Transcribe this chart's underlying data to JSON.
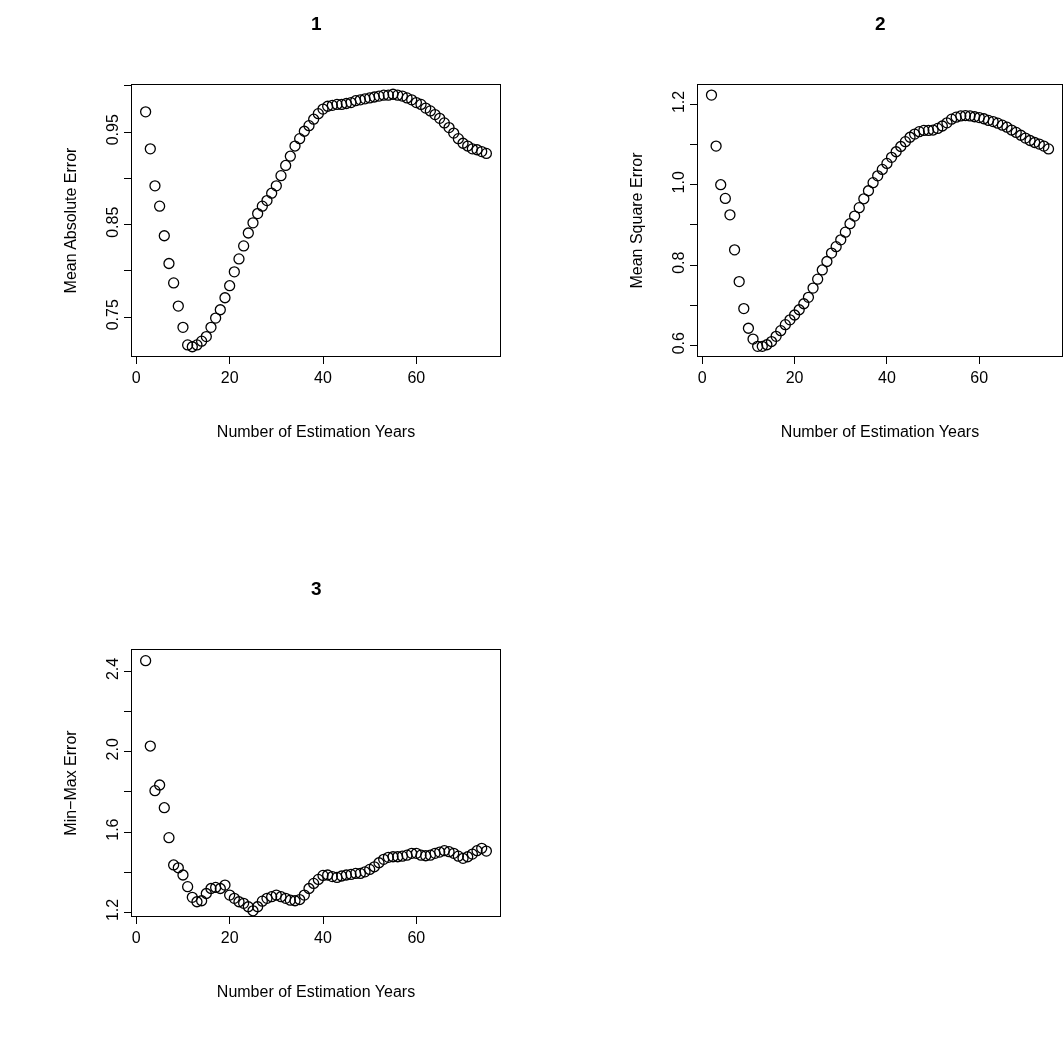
{
  "chart_data": [
    {
      "type": "scatter",
      "title": "1",
      "xlabel": "Number of Estimation Years",
      "ylabel": "Mean Absolute Error",
      "marker": "circle",
      "grid": false,
      "legend": false,
      "x": [
        2,
        3,
        4,
        5,
        6,
        7,
        8,
        9,
        10,
        11,
        12,
        13,
        14,
        15,
        16,
        17,
        18,
        19,
        20,
        21,
        22,
        23,
        24,
        25,
        26,
        27,
        28,
        29,
        30,
        31,
        32,
        33,
        34,
        35,
        36,
        37,
        38,
        39,
        40,
        41,
        42,
        43,
        44,
        45,
        46,
        47,
        48,
        49,
        50,
        51,
        52,
        53,
        54,
        55,
        56,
        57,
        58,
        59,
        60,
        61,
        62,
        63,
        64,
        65,
        66,
        67,
        68,
        69,
        70,
        71,
        72,
        73,
        74,
        75
      ],
      "series": [
        {
          "color": "#000000",
          "values": [
            0.972,
            0.932,
            0.892,
            0.87,
            0.838,
            0.808,
            0.787,
            0.762,
            0.739,
            0.72,
            0.718,
            0.72,
            0.724,
            0.729,
            0.739,
            0.749,
            0.758,
            0.771,
            0.784,
            0.799,
            0.813,
            0.827,
            0.841,
            0.852,
            0.862,
            0.87,
            0.876,
            0.884,
            0.892,
            0.903,
            0.914,
            0.924,
            0.935,
            0.943,
            0.951,
            0.957,
            0.964,
            0.97,
            0.975,
            0.978,
            0.979,
            0.98,
            0.98,
            0.981,
            0.982,
            0.984,
            0.985,
            0.986,
            0.987,
            0.988,
            0.989,
            0.99,
            0.99,
            0.991,
            0.99,
            0.989,
            0.987,
            0.985,
            0.982,
            0.98,
            0.976,
            0.973,
            0.969,
            0.965,
            0.96,
            0.955,
            0.949,
            0.943,
            0.938,
            0.935,
            0.932,
            0.931,
            0.929,
            0.927
          ]
        }
      ],
      "xlim": [
        -0.92,
        77.92
      ],
      "xticks": [
        0,
        20,
        40,
        60
      ],
      "ylim": [
        0.708,
        1.001
      ],
      "yticks": [
        0.75,
        {
          "value": 0.8,
          "label": null
        },
        0.85,
        {
          "value": 0.9,
          "label": null
        },
        0.95,
        {
          "value": 1,
          "label": null
        }
      ]
    },
    {
      "type": "scatter",
      "title": "2",
      "xlabel": "Number of Estimation Years",
      "ylabel": "Mean Square Error",
      "marker": "circle",
      "grid": false,
      "legend": false,
      "x": [
        2,
        3,
        4,
        5,
        6,
        7,
        8,
        9,
        10,
        11,
        12,
        13,
        14,
        15,
        16,
        17,
        18,
        19,
        20,
        21,
        22,
        23,
        24,
        25,
        26,
        27,
        28,
        29,
        30,
        31,
        32,
        33,
        34,
        35,
        36,
        37,
        38,
        39,
        40,
        41,
        42,
        43,
        44,
        45,
        46,
        47,
        48,
        49,
        50,
        51,
        52,
        53,
        54,
        55,
        56,
        57,
        58,
        59,
        60,
        61,
        62,
        63,
        64,
        65,
        66,
        67,
        68,
        69,
        70,
        71,
        72,
        73,
        74,
        75
      ],
      "series": [
        {
          "color": "#000000",
          "values": [
            1.223,
            1.096,
            1.0,
            0.966,
            0.925,
            0.838,
            0.759,
            0.692,
            0.643,
            0.616,
            0.598,
            0.598,
            0.602,
            0.61,
            0.623,
            0.637,
            0.652,
            0.664,
            0.676,
            0.689,
            0.704,
            0.72,
            0.743,
            0.765,
            0.788,
            0.809,
            0.83,
            0.846,
            0.863,
            0.882,
            0.903,
            0.922,
            0.943,
            0.965,
            0.985,
            1.005,
            1.022,
            1.038,
            1.053,
            1.068,
            1.082,
            1.095,
            1.107,
            1.118,
            1.126,
            1.132,
            1.135,
            1.135,
            1.136,
            1.14,
            1.146,
            1.154,
            1.163,
            1.168,
            1.171,
            1.172,
            1.171,
            1.169,
            1.167,
            1.164,
            1.16,
            1.157,
            1.153,
            1.148,
            1.143,
            1.136,
            1.13,
            1.123,
            1.116,
            1.11,
            1.105,
            1.101,
            1.096,
            1.089
          ]
        }
      ],
      "xlim": [
        -0.92,
        77.92
      ],
      "xticks": [
        0,
        20,
        40,
        60
      ],
      "ylim": [
        0.574,
        1.248
      ],
      "yticks": [
        0.6,
        {
          "value": 0.7,
          "label": null
        },
        0.8,
        {
          "value": 0.9,
          "label": null
        },
        {
          "value": 1,
          "label": "1.0"
        },
        {
          "value": 1.1,
          "label": null
        },
        1.2
      ]
    },
    {
      "type": "scatter",
      "title": "3",
      "xlabel": "Number of Estimation Years",
      "ylabel": "Min−Max Error",
      "marker": "circle",
      "grid": false,
      "legend": false,
      "x": [
        2,
        3,
        4,
        5,
        6,
        7,
        8,
        9,
        10,
        11,
        12,
        13,
        14,
        15,
        16,
        17,
        18,
        19,
        20,
        21,
        22,
        23,
        24,
        25,
        26,
        27,
        28,
        29,
        30,
        31,
        32,
        33,
        34,
        35,
        36,
        37,
        38,
        39,
        40,
        41,
        42,
        43,
        44,
        45,
        46,
        47,
        48,
        49,
        50,
        51,
        52,
        53,
        54,
        55,
        56,
        57,
        58,
        59,
        60,
        61,
        62,
        63,
        64,
        65,
        66,
        67,
        68,
        69,
        70,
        71,
        72,
        73,
        74,
        75
      ],
      "series": [
        {
          "color": "#000000",
          "values": [
            2.453,
            2.028,
            1.806,
            1.834,
            1.721,
            1.572,
            1.436,
            1.422,
            1.386,
            1.328,
            1.275,
            1.253,
            1.258,
            1.294,
            1.319,
            1.324,
            1.319,
            1.336,
            1.286,
            1.27,
            1.253,
            1.245,
            1.228,
            1.208,
            1.228,
            1.256,
            1.27,
            1.278,
            1.286,
            1.278,
            1.27,
            1.261,
            1.258,
            1.264,
            1.286,
            1.319,
            1.344,
            1.364,
            1.384,
            1.386,
            1.378,
            1.374,
            1.381,
            1.386,
            1.389,
            1.394,
            1.394,
            1.402,
            1.414,
            1.427,
            1.447,
            1.464,
            1.474,
            1.477,
            1.477,
            1.48,
            1.485,
            1.494,
            1.494,
            1.485,
            1.482,
            1.485,
            1.494,
            1.5,
            1.507,
            1.502,
            1.494,
            1.48,
            1.469,
            1.477,
            1.49,
            1.507,
            1.519,
            1.505
          ]
        }
      ],
      "xlim": [
        -0.92,
        77.92
      ],
      "xticks": [
        0,
        20,
        40,
        60
      ],
      "ylim": [
        1.182,
        2.506
      ],
      "yticks": [
        1.2,
        {
          "value": 1.4,
          "label": null
        },
        1.6,
        {
          "value": 1.8,
          "label": null
        },
        {
          "value": 2,
          "label": "2.0"
        },
        {
          "value": 2.2,
          "label": null
        },
        2.4
      ]
    }
  ]
}
